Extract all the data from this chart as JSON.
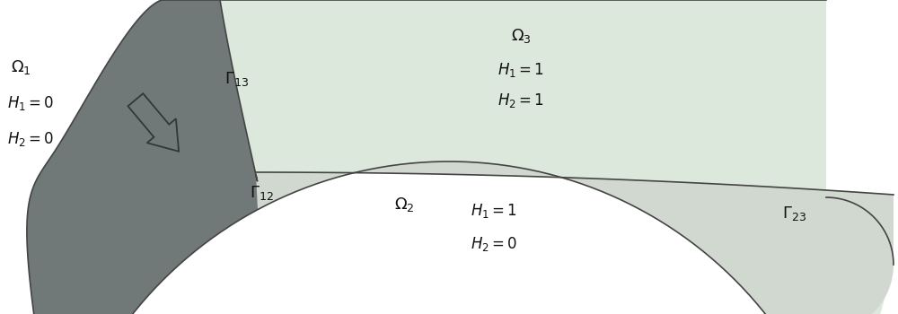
{
  "bg_color": "#ffffff",
  "omega3_color": "#dde8dd",
  "omega2_color": "#d0d8d0",
  "landslide_color": "#707878",
  "border_color": "#444444",
  "text_color": "#111111",
  "figsize": [
    10.0,
    3.5
  ],
  "dpi": 100,
  "omega1_label": "$\\Omega_1$",
  "omega2_label": "$\\Omega_2$",
  "omega3_label": "$\\Omega_3$",
  "gamma12_label": "$\\Gamma_{12}$",
  "gamma13_label": "$\\Gamma_{13}$",
  "gamma23_label": "$\\Gamma_{23}$",
  "omega1_h1": "$H_1 = 0$",
  "omega1_h2": "$H_2 = 0$",
  "omega2_h1": "$H_1 = 1$",
  "omega2_h2": "$H_2 = 0$",
  "omega3_h1": "$H_1 = 1$",
  "omega3_h2": "$H_2 = 1$"
}
